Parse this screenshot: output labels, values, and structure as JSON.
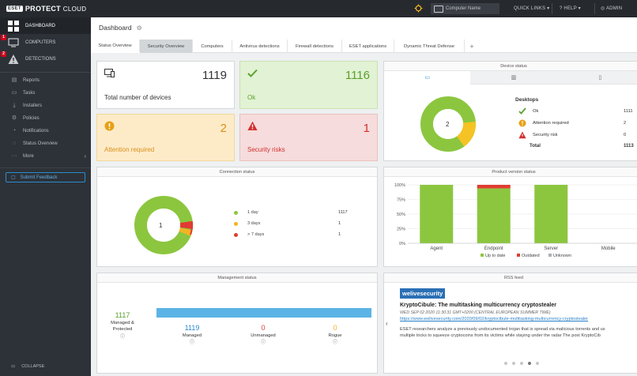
{
  "header": {
    "logo_box": "ESET",
    "logo_main": "PROTECT",
    "logo_cloud": "CLOUD",
    "search_placeholder": "Computer Name",
    "quick_links": "QUICK LINKS",
    "help": "HELP",
    "user": "ADMIN"
  },
  "sidebar": {
    "main": [
      {
        "label": "DASHBOARD",
        "badge": ""
      },
      {
        "label": "COMPUTERS",
        "badge": "1"
      },
      {
        "label": "DETECTIONS",
        "badge": "2"
      }
    ],
    "items": [
      {
        "label": "Reports",
        "icon": "reports-icon"
      },
      {
        "label": "Tasks",
        "icon": "tasks-icon"
      },
      {
        "label": "Installers",
        "icon": "installers-icon"
      },
      {
        "label": "Policies",
        "icon": "policies-icon"
      },
      {
        "label": "Notifications",
        "icon": "notifications-icon"
      },
      {
        "label": "Status Overview",
        "icon": "status-overview-icon"
      },
      {
        "label": "More",
        "icon": "more-icon"
      }
    ],
    "feedback": "Submit Feedback",
    "collapse": "COLLAPSE"
  },
  "page": {
    "title": "Dashboard",
    "tabs": [
      "Status Overview",
      "Security Overview",
      "Computers",
      "Antivirus detections",
      "Firewall detections",
      "ESET applications",
      "Dynamic Threat Defense"
    ]
  },
  "tiles": {
    "total": {
      "value": "1119",
      "label": "Total number of devices"
    },
    "ok": {
      "value": "1116",
      "label": "Ok"
    },
    "attention": {
      "value": "2",
      "label": "Attention required"
    },
    "security": {
      "value": "1",
      "label": "Security risks"
    }
  },
  "device_status": {
    "title": "Device status",
    "center": "2",
    "heading": "Desktops",
    "rows": [
      {
        "label": "Ok",
        "value": "1111"
      },
      {
        "label": "Attention required",
        "value": "2"
      },
      {
        "label": "Security risk",
        "value": "0"
      }
    ],
    "total_label": "Total",
    "total_value": "1113"
  },
  "connection_status": {
    "title": "Connection status",
    "center": "1",
    "rows": [
      {
        "label": "1 day",
        "value": "1117"
      },
      {
        "label": "3 days",
        "value": "1"
      },
      {
        "label": "> 7 days",
        "value": "1"
      }
    ]
  },
  "product_version": {
    "title": "Product version status"
  },
  "chart_data": {
    "type": "bar",
    "categories": [
      "Agent",
      "Endpoint",
      "Server",
      "Mobile"
    ],
    "series": [
      {
        "name": "Up to date",
        "values": [
          100,
          94,
          100,
          0
        ]
      },
      {
        "name": "Outdated",
        "values": [
          0,
          6,
          0,
          0
        ]
      },
      {
        "name": "Unknown",
        "values": [
          0,
          0,
          0,
          0
        ]
      }
    ],
    "yticks": [
      "0%",
      "25%",
      "50%",
      "75%",
      "100%"
    ],
    "ylim": [
      0,
      100
    ],
    "colors": [
      "#8cc63f",
      "#e03c31",
      "#a9b0b8"
    ],
    "legend": "bottom"
  },
  "management_status": {
    "title": "Management status",
    "managed_protected_value": "1117",
    "managed_protected_label": "Managed & Protected",
    "managed_value": "1119",
    "managed_label": "Managed",
    "unmanaged_value": "0",
    "unmanaged_label": "Unmanaged",
    "rogue_value": "0",
    "rogue_label": "Rogue",
    "managed_fraction": 1.0
  },
  "rss": {
    "title": "RSS feed",
    "brand": "welivesecurity",
    "headline": "KryptoCibule: The multitasking multicurrency cryptostealer",
    "date": "WED SEP 02 2020 11:30:31 GMT+0200 (CENTRAL EUROPEAN SUMMER TIME)",
    "link": "https://www.welivesecurity.com/2020/09/02/kryptocibule-multitasking-multicurrency-cryptostealer",
    "text1": "ESET researchers analyze a previously undocumented trojan that is spread via malicious torrents and us",
    "text2": "multiple tricks to squeeze cryptocoins from its victims while staying under the radar The post KryptoCib"
  },
  "colors": {
    "green": "#8cc63f",
    "yellow": "#f5b323",
    "red": "#e03c31",
    "blue": "#3498db",
    "teal_bar": "#5bb4e5"
  }
}
